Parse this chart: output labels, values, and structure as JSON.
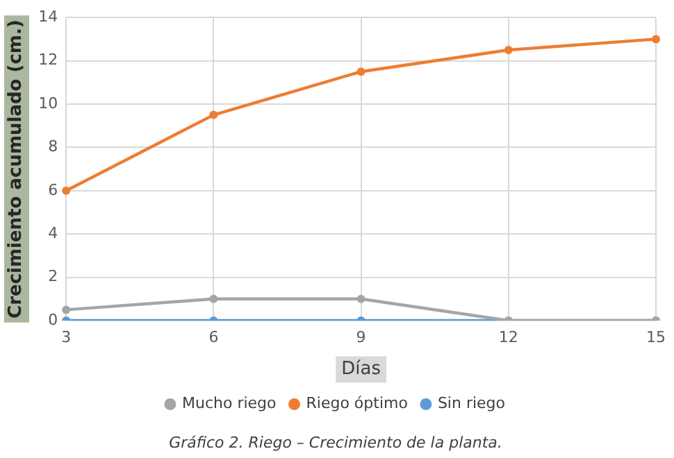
{
  "chart_data": {
    "type": "line",
    "title": "Gráfico 2. Riego – Crecimiento de la planta.",
    "xlabel": "Días",
    "ylabel": "Crecimiento acumulado (cm.)",
    "categories": [
      "3",
      "6",
      "9",
      "12",
      "15"
    ],
    "series": [
      {
        "name": "Sin riego",
        "color": "#5b9bd5",
        "values": [
          0,
          0,
          0,
          0,
          0
        ]
      },
      {
        "name": "Riego óptimo",
        "color": "#ed7d31",
        "values": [
          6,
          9.5,
          11.5,
          12.5,
          13
        ]
      },
      {
        "name": "Mucho riego",
        "color": "#a5a5a5",
        "values": [
          0.5,
          1,
          1,
          0,
          0
        ]
      }
    ],
    "ylim": [
      0,
      14
    ],
    "yticks": [
      0,
      2,
      4,
      6,
      8,
      10,
      12,
      14
    ],
    "grid": true,
    "legend": "bottom",
    "marker": "circle",
    "line_style": "solid"
  }
}
